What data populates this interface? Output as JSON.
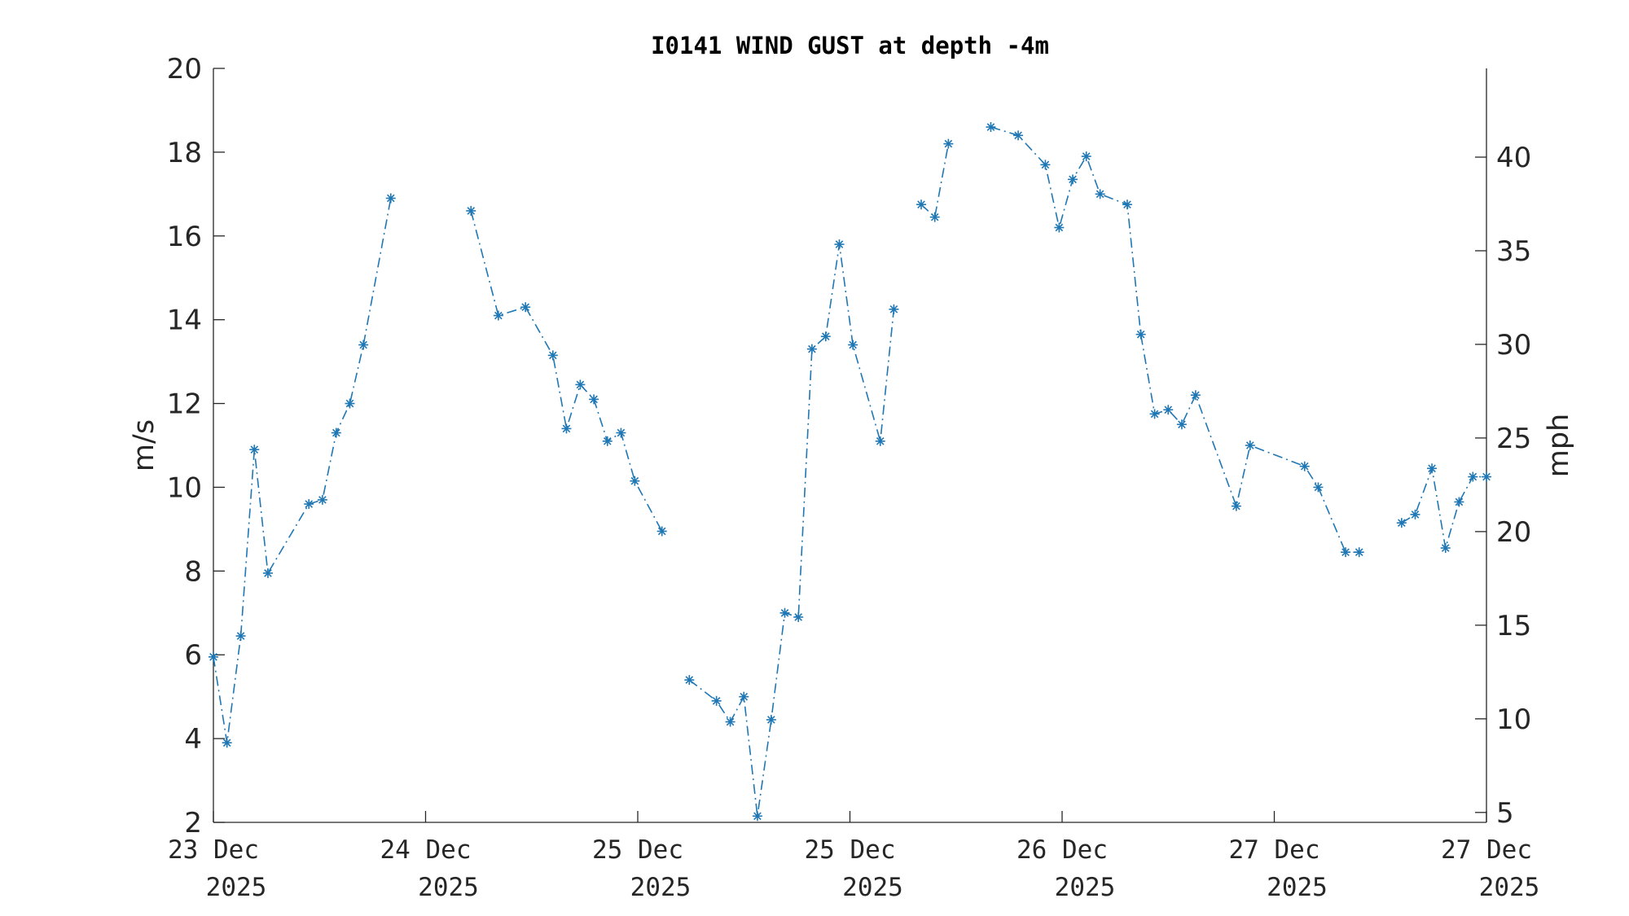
{
  "chart_data": {
    "type": "line",
    "title": "I0141 WIND GUST at depth -4m",
    "ylabel_left": "m/s",
    "ylabel_right": "mph",
    "ylim_left": [
      2,
      20
    ],
    "yticks_left": [
      "2",
      "4",
      "6",
      "8",
      "10",
      "12",
      "14",
      "16",
      "18",
      "20"
    ],
    "ylim_right": [
      4.47,
      44.74
    ],
    "yticks_right": [
      "5",
      "10",
      "15",
      "20",
      "25",
      "30",
      "35",
      "40"
    ],
    "x_tick_labels": [
      {
        "day": "23 Dec",
        "year": "2025"
      },
      {
        "day": "24 Dec",
        "year": "2025"
      },
      {
        "day": "25 Dec",
        "year": "2025"
      },
      {
        "day": "25 Dec",
        "year": "2025"
      },
      {
        "day": "26 Dec",
        "year": "2025"
      },
      {
        "day": "27 Dec",
        "year": "2025"
      },
      {
        "day": "27 Dec",
        "year": "2025"
      }
    ],
    "series_color": "#1f77b4",
    "line_style": "dash-dot",
    "marker": "asterisk",
    "series": [
      {
        "segments": [
          [
            [
              0.0,
              5.95
            ],
            [
              0.064,
              3.9
            ],
            [
              0.129,
              6.45
            ],
            [
              0.193,
              10.9
            ],
            [
              0.257,
              7.95
            ],
            [
              0.45,
              9.6
            ],
            [
              0.514,
              9.7
            ],
            [
              0.579,
              11.3
            ],
            [
              0.643,
              12.0
            ],
            [
              0.707,
              13.4
            ],
            [
              0.836,
              16.9
            ]
          ],
          [
            [
              1.214,
              16.6
            ],
            [
              1.343,
              14.1
            ],
            [
              1.471,
              14.3
            ],
            [
              1.6,
              13.15
            ],
            [
              1.664,
              11.4
            ],
            [
              1.729,
              12.45
            ],
            [
              1.793,
              12.1
            ],
            [
              1.857,
              11.1
            ],
            [
              1.921,
              11.3
            ],
            [
              1.986,
              10.15
            ],
            [
              2.114,
              8.95
            ]
          ],
          [
            [
              2.243,
              5.4
            ],
            [
              2.371,
              4.9
            ],
            [
              2.436,
              4.4
            ],
            [
              2.5,
              5.0
            ],
            [
              2.564,
              2.15
            ],
            [
              2.629,
              4.45
            ],
            [
              2.693,
              7.0
            ],
            [
              2.757,
              6.9
            ],
            [
              2.821,
              13.3
            ],
            [
              2.886,
              13.6
            ],
            [
              2.95,
              15.8
            ],
            [
              3.014,
              13.4
            ],
            [
              3.143,
              11.1
            ],
            [
              3.207,
              14.25
            ]
          ],
          [
            [
              3.336,
              16.75
            ],
            [
              3.4,
              16.45
            ],
            [
              3.464,
              18.2
            ]
          ],
          [
            [
              3.664,
              18.6
            ],
            [
              3.793,
              18.4
            ],
            [
              3.921,
              17.7
            ],
            [
              3.986,
              16.2
            ],
            [
              4.05,
              17.35
            ],
            [
              4.114,
              17.9
            ],
            [
              4.179,
              17.0
            ],
            [
              4.307,
              16.75
            ],
            [
              4.371,
              13.65
            ],
            [
              4.436,
              11.75
            ],
            [
              4.5,
              11.85
            ],
            [
              4.564,
              11.5
            ],
            [
              4.629,
              12.2
            ],
            [
              4.821,
              9.55
            ],
            [
              4.886,
              11.0
            ],
            [
              5.143,
              10.5
            ],
            [
              5.207,
              10.0
            ],
            [
              5.336,
              8.45
            ],
            [
              5.4,
              8.45
            ]
          ],
          [
            [
              5.6,
              9.15
            ],
            [
              5.664,
              9.35
            ],
            [
              5.743,
              10.45
            ],
            [
              5.807,
              8.55
            ],
            [
              5.871,
              9.65
            ],
            [
              5.936,
              10.25
            ],
            [
              6.0,
              10.25
            ]
          ]
        ]
      }
    ]
  }
}
